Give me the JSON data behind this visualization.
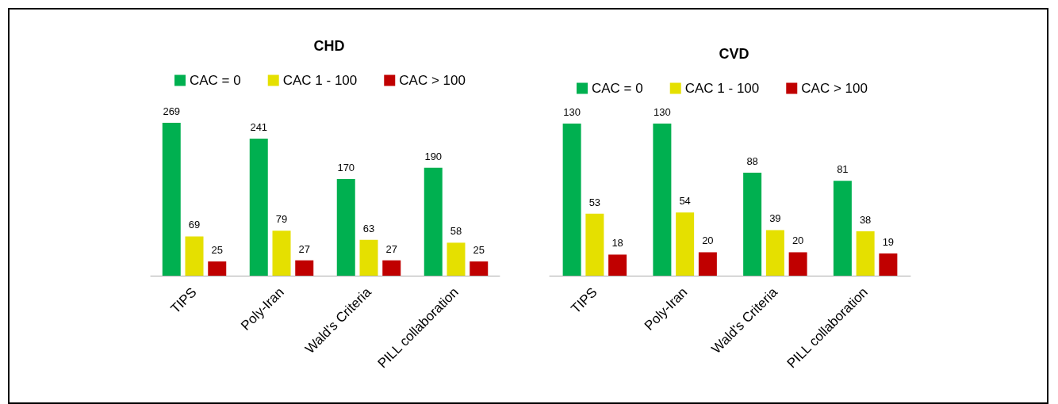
{
  "chart_data": [
    {
      "type": "bar",
      "title": "CHD",
      "categories": [
        "TIPS",
        "Poly-Iran",
        "Wald's Criteria",
        "PILL collaboration"
      ],
      "series": [
        {
          "name": "CAC = 0",
          "color": "#00b050",
          "values": [
            269,
            241,
            170,
            190
          ]
        },
        {
          "name": "CAC 1 - 100",
          "color": "#e5e000",
          "values": [
            69,
            79,
            63,
            58
          ]
        },
        {
          "name": "CAC > 100",
          "color": "#c00000",
          "values": [
            25,
            27,
            27,
            25
          ]
        }
      ],
      "data_labels": true,
      "legend": "top"
    },
    {
      "type": "bar",
      "title": "CVD",
      "categories": [
        "TIPS",
        "Poly-Iran",
        "Wald's Criteria",
        "PILL collaboration"
      ],
      "series": [
        {
          "name": "CAC = 0",
          "color": "#00b050",
          "values": [
            130,
            130,
            88,
            81
          ]
        },
        {
          "name": "CAC 1 - 100",
          "color": "#e5e000",
          "values": [
            53,
            54,
            39,
            38
          ]
        },
        {
          "name": "CAC > 100",
          "color": "#c00000",
          "values": [
            18,
            20,
            20,
            19
          ]
        }
      ],
      "data_labels": true,
      "legend": "top"
    }
  ]
}
